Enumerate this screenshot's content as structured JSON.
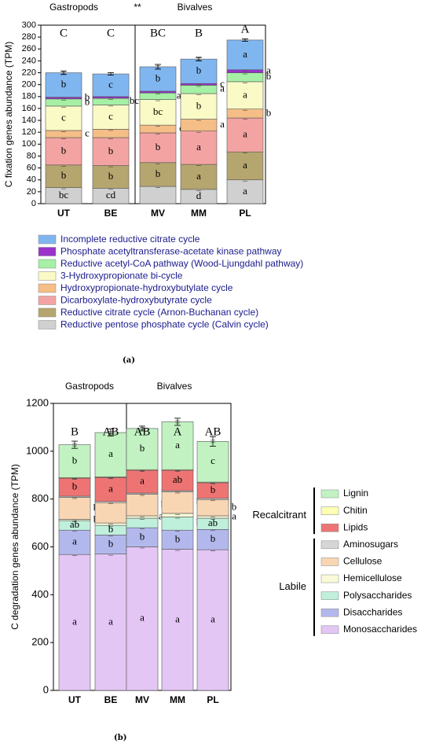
{
  "chart_data": [
    {
      "type": "bar",
      "stacked": true,
      "panel_label": "(a)",
      "group_labels": [
        "Gastropods",
        "Bivalves"
      ],
      "significance_marker": "**",
      "ylabel": "C fixation genes abundance (TPM)",
      "ylim": [
        0,
        300
      ],
      "yticks": [
        0,
        20,
        40,
        60,
        80,
        100,
        120,
        140,
        160,
        180,
        200,
        220,
        240,
        260,
        280,
        300
      ],
      "categories": [
        "UT",
        "BE",
        "MV",
        "MM",
        "PL"
      ],
      "totals_letters": [
        "C",
        "C",
        "BC",
        "B",
        "A"
      ],
      "total_errors": [
        3,
        2,
        4,
        3,
        2
      ],
      "legend_position": "below",
      "series": [
        {
          "name": "Reductive pentose phosphate cycle (Calvin cycle)",
          "color": "#d0d0d0",
          "values": [
            27,
            26,
            29,
            24,
            40
          ],
          "letters": [
            "bc",
            "cd",
            "",
            "d",
            "a"
          ],
          "side_letters": [
            "",
            "",
            "",
            "",
            ""
          ]
        },
        {
          "name": "Reductive citrate cycle (Arnon-Buchanan cycle)",
          "color": "#b5a66f",
          "values": [
            38,
            38,
            40,
            42,
            47
          ],
          "letters": [
            "b",
            "b",
            "b",
            "a",
            "a"
          ],
          "side_letters": [
            "",
            "",
            "",
            "",
            ""
          ]
        },
        {
          "name": "Dicarboxylate-hydroxybutyrate cycle",
          "color": "#f4a3a3",
          "values": [
            46,
            47,
            50,
            56,
            57
          ],
          "letters": [
            "b",
            "b",
            "b",
            "a",
            "a"
          ],
          "side_letters": [
            "",
            "",
            "",
            "",
            ""
          ]
        },
        {
          "name": "Hydroxypropionate-hydroxybutylate cycle",
          "color": "#f5be86",
          "values": [
            12,
            14,
            13,
            20,
            15
          ],
          "letters": [
            "",
            "",
            "",
            "",
            ""
          ],
          "side_letters": [
            "c",
            "",
            "c",
            "a",
            "b"
          ]
        },
        {
          "name": "3-Hydroxypropionate bi-cycle",
          "color": "#fafac6",
          "values": [
            41,
            41,
            43,
            43,
            46
          ],
          "letters": [
            "c",
            "c",
            "bc",
            "b",
            "a"
          ],
          "side_letters": [
            "",
            "",
            "",
            "",
            ""
          ]
        },
        {
          "name": "Reductive acetyl-CoA pathway (Wood-Ljungdahl pathway)",
          "color": "#a6f0a6",
          "values": [
            12,
            11,
            11,
            14,
            15
          ],
          "letters": [
            "",
            "",
            "",
            "",
            ""
          ],
          "side_letters": [
            "b",
            "bc",
            "ab",
            "a",
            "b"
          ]
        },
        {
          "name": "Phosphate acetyltransferase-acetate kinase pathway",
          "color": "#9933cc",
          "values": [
            3,
            3,
            3,
            3,
            5
          ],
          "letters": [
            "",
            "",
            "",
            "",
            ""
          ],
          "side_letters": [
            "b",
            "",
            "",
            "c",
            "a"
          ]
        },
        {
          "name": "Incomplete reductive citrate cycle",
          "color": "#80b6f0",
          "values": [
            41,
            38,
            41,
            41,
            50
          ],
          "letters": [
            "b",
            "c",
            "b",
            "b",
            "a"
          ],
          "side_letters": [
            "",
            "",
            "",
            "",
            ""
          ]
        }
      ]
    },
    {
      "type": "bar",
      "stacked": true,
      "panel_label": "(b)",
      "group_labels": [
        "Gastropods",
        "Bivalves"
      ],
      "ylabel": "C degradation genes abundance (TPM)",
      "ylim": [
        0,
        1200
      ],
      "yticks": [
        0,
        200,
        400,
        600,
        800,
        1000,
        1200
      ],
      "categories": [
        "UT",
        "BE",
        "MV",
        "MM",
        "PL"
      ],
      "totals_letters": [
        "B",
        "AB",
        "AB",
        "A",
        "AB"
      ],
      "total_errors": [
        15,
        15,
        10,
        15,
        20
      ],
      "legend_position": "right",
      "legend_groups": [
        {
          "label": "Recalcitrant",
          "items": [
            "Lignin",
            "Chitin",
            "Lipids"
          ]
        },
        {
          "label": "Labile",
          "items": [
            "Aminosugars",
            "Cellulose",
            "Hemicellulose",
            "Polysaccharides",
            "Disaccharides",
            "Monosaccharides"
          ]
        }
      ],
      "series": [
        {
          "name": "Monosaccharides",
          "color": "#e4c6f5",
          "values": [
            568,
            570,
            600,
            590,
            588
          ],
          "letters": [
            "a",
            "a",
            "a",
            "a",
            "a"
          ],
          "side_letters": [
            "",
            "",
            "",
            "",
            ""
          ]
        },
        {
          "name": "Disaccharides",
          "color": "#b3b8ec",
          "values": [
            102,
            80,
            80,
            80,
            85
          ],
          "letters": [
            "a",
            "b",
            "b",
            "b",
            "b"
          ],
          "side_letters": [
            "",
            "",
            "",
            "",
            ""
          ]
        },
        {
          "name": "Polysaccharides",
          "color": "#bff0dc",
          "values": [
            40,
            40,
            40,
            55,
            47
          ],
          "letters": [
            "ab",
            "b",
            "",
            "",
            "ab"
          ],
          "side_letters": [
            "",
            "",
            "",
            "b",
            ""
          ]
        },
        {
          "name": "Hemicellulose",
          "color": "#fafad8",
          "values": [
            5,
            10,
            10,
            15,
            10
          ],
          "letters": [
            "",
            "",
            "",
            "",
            ""
          ],
          "side_letters": [
            "b",
            "",
            "ab",
            "",
            "a"
          ]
        },
        {
          "name": "Cellulose",
          "color": "#f8d6b4",
          "values": [
            92,
            85,
            90,
            90,
            68
          ],
          "letters": [
            "",
            "",
            "",
            "",
            ""
          ],
          "side_letters": [
            "b",
            "b",
            "b",
            "b",
            "b"
          ]
        },
        {
          "name": "Aminosugars",
          "color": "#d6d6d6",
          "values": [
            5,
            5,
            5,
            5,
            5
          ],
          "letters": [
            "",
            "",
            "",
            "",
            ""
          ],
          "side_letters": [
            "",
            "",
            "",
            "",
            ""
          ]
        },
        {
          "name": "Lipids",
          "color": "#ee7474",
          "values": [
            75,
            100,
            95,
            85,
            65
          ],
          "letters": [
            "b",
            "a",
            "a",
            "ab",
            "b"
          ],
          "side_letters": [
            "",
            "",
            "",
            "",
            ""
          ]
        },
        {
          "name": "Chitin",
          "color": "#ffffb3",
          "values": [
            3,
            3,
            3,
            3,
            3
          ],
          "letters": [
            "",
            "",
            "",
            "",
            ""
          ],
          "side_letters": [
            "",
            "",
            "",
            "",
            ""
          ]
        },
        {
          "name": "Lignin",
          "color": "#c2f2c2",
          "values": [
            137,
            185,
            172,
            200,
            170
          ],
          "letters": [
            "b",
            "a",
            "b",
            "a",
            "c"
          ],
          "side_letters": [
            "",
            "",
            "",
            "",
            ""
          ]
        }
      ],
      "extra_labels": {
        "UT": [
          "c",
          "b",
          "b",
          "b"
        ],
        "BE": [
          "b",
          "a",
          "b",
          "b",
          "b"
        ],
        "MV": [
          "a",
          "b",
          "b",
          "a",
          "b",
          "a",
          "b",
          "b"
        ],
        "MM": [
          "ab",
          "ab",
          "a",
          "ab",
          "b"
        ],
        "PL": [
          "c",
          "a",
          "c",
          "a"
        ]
      }
    }
  ]
}
